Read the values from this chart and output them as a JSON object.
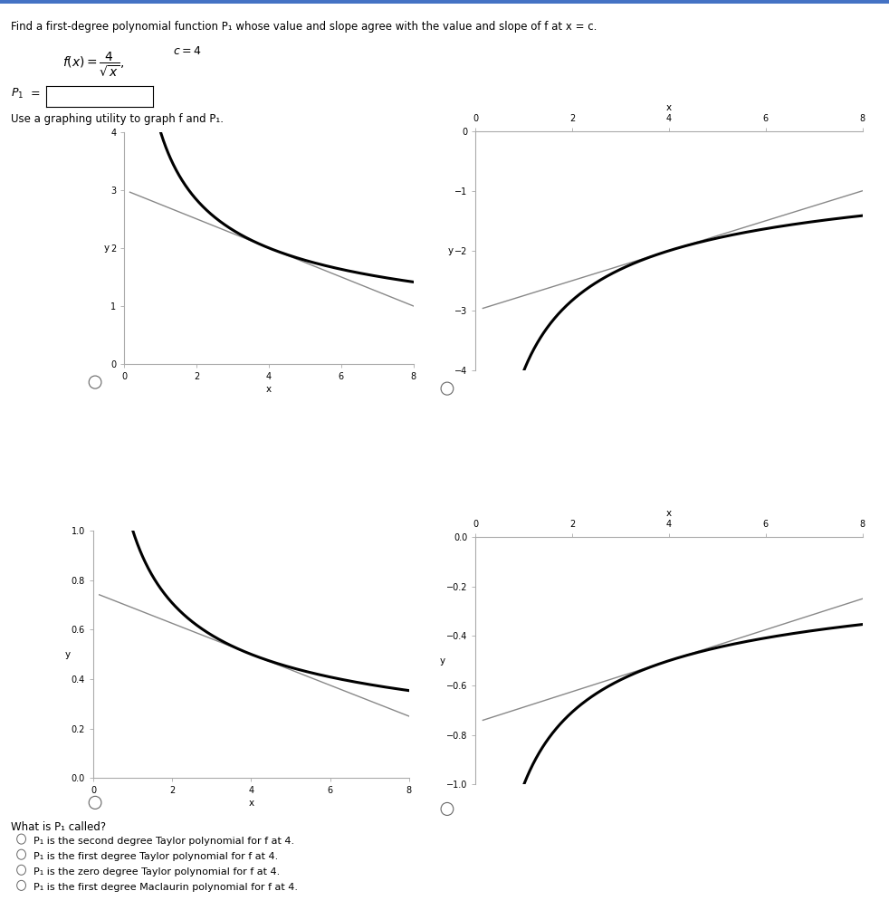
{
  "title_text": "Find a first-degree polynomial function P₁ whose value and slope agree with the value and slope of f at x = c.",
  "use_graph_label": "Use a graphing utility to graph f and P₁.",
  "question_label": "What is P₁ called?",
  "options": [
    "P₁ is the second degree Taylor polynomial for f at 4.",
    "P₁ is the first degree Taylor polynomial for f at 4.",
    "P₁ is the zero degree Taylor polynomial for f at 4.",
    "P₁ is the first degree Maclaurin polynomial for f at 4."
  ],
  "plots": [
    {
      "xlim": [
        0,
        8
      ],
      "ylim": [
        0,
        4
      ],
      "xticks": [
        0,
        2,
        4,
        6,
        8
      ],
      "yticks": [
        0,
        1,
        2,
        3,
        4
      ],
      "xlabel": "x",
      "ylabel": "y",
      "xaxis_top": false,
      "scale": 1.0,
      "sign": 1
    },
    {
      "xlim": [
        0,
        8
      ],
      "ylim": [
        -4,
        0
      ],
      "xticks": [
        0,
        2,
        4,
        6,
        8
      ],
      "yticks": [
        -4,
        -3,
        -2,
        -1,
        0
      ],
      "xlabel": "x",
      "ylabel": "y",
      "xaxis_top": true,
      "scale": 1.0,
      "sign": -1
    },
    {
      "xlim": [
        0,
        8
      ],
      "ylim": [
        0,
        1
      ],
      "xticks": [
        0,
        2,
        4,
        6,
        8
      ],
      "yticks": [
        0,
        0.2,
        0.4,
        0.6,
        0.8,
        1.0
      ],
      "xlabel": "x",
      "ylabel": "y",
      "xaxis_top": false,
      "scale": 0.25,
      "sign": 1
    },
    {
      "xlim": [
        0,
        8
      ],
      "ylim": [
        -1,
        0
      ],
      "xticks": [
        0,
        2,
        4,
        6,
        8
      ],
      "yticks": [
        -1.0,
        -0.8,
        -0.6,
        -0.4,
        -0.2,
        0
      ],
      "xlabel": "x",
      "ylabel": "y",
      "xaxis_top": true,
      "scale": 0.25,
      "sign": -1
    }
  ],
  "bg_color": "#ffffff",
  "curve_color": "#000000",
  "line_color": "#888888",
  "curve_lw": 2.2,
  "line_lw": 1.0,
  "top_border_color": "#4472c4",
  "top_border_height": 0.004
}
